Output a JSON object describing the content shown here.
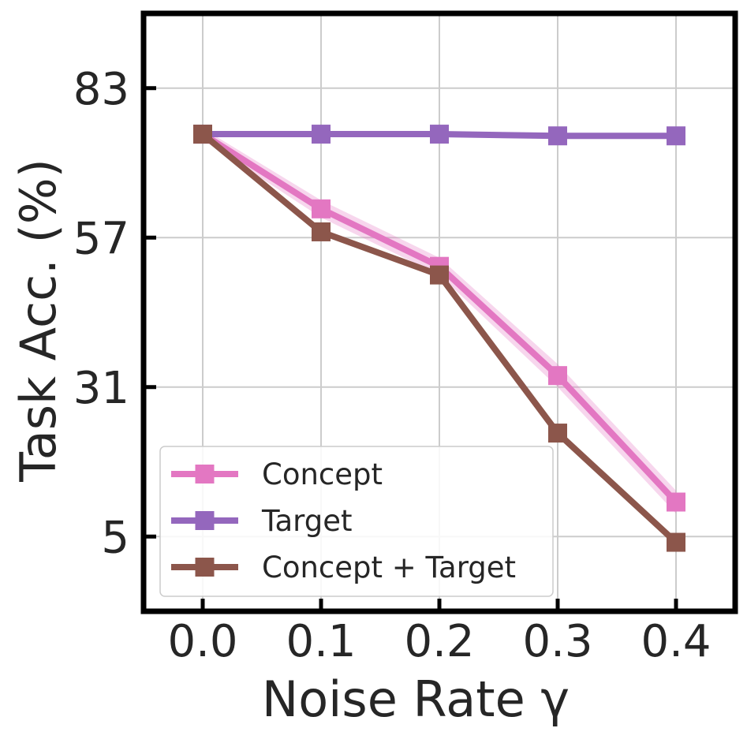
{
  "chart_data": {
    "type": "line",
    "title": "",
    "xlabel": "Noise Rate γ",
    "ylabel": "Task Acc. (%)",
    "x": [
      0.0,
      0.1,
      0.2,
      0.3,
      0.4
    ],
    "x_tick_labels": [
      "0.0",
      "0.1",
      "0.2",
      "0.3",
      "0.4"
    ],
    "xlim": [
      -0.05,
      0.45
    ],
    "y_ticks": [
      5,
      31,
      57,
      83
    ],
    "y_tick_labels": [
      "5",
      "31",
      "57",
      "83"
    ],
    "ylim": [
      -8,
      96
    ],
    "grid": true,
    "legend_position": "lower-left",
    "series": [
      {
        "name": "Concept",
        "color": "#e377c2",
        "values": [
          75,
          62,
          52,
          33,
          11
        ],
        "band": [
          1,
          1.5,
          1.5,
          2,
          2
        ]
      },
      {
        "name": "Target",
        "color": "#9467bd",
        "values": [
          75,
          75,
          75,
          74.7,
          74.7
        ]
      },
      {
        "name": "Concept + Target",
        "color": "#8c564b",
        "values": [
          75,
          58,
          50.5,
          23,
          4
        ]
      }
    ]
  }
}
